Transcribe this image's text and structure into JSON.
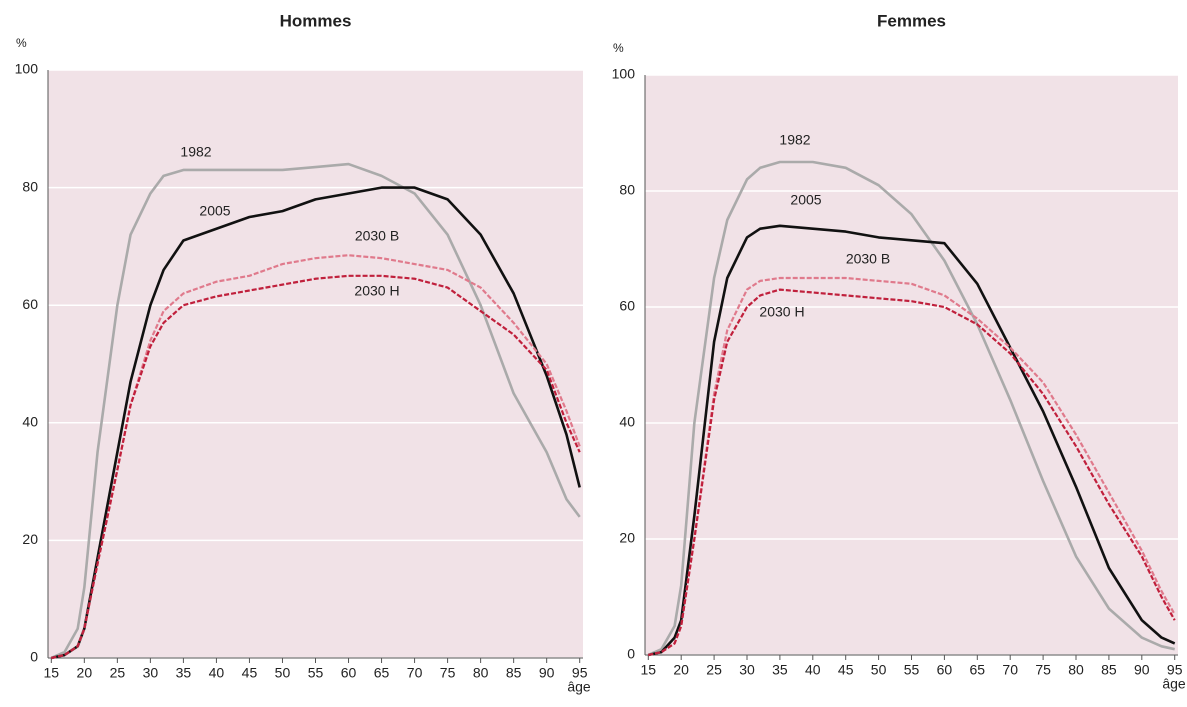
{
  "chart_data": [
    {
      "type": "line",
      "title": "Hommes",
      "y_label": "%",
      "x_label": "âge",
      "x": [
        15,
        17,
        19,
        20,
        22,
        25,
        27,
        30,
        32,
        35,
        40,
        45,
        50,
        55,
        60,
        65,
        70,
        75,
        80,
        85,
        90,
        93,
        95
      ],
      "series": [
        {
          "name": "1982",
          "color": "#aaaaaa",
          "dashed": false,
          "values": [
            0,
            1,
            5,
            12,
            35,
            60,
            72,
            79,
            82,
            83,
            83,
            83,
            83,
            83.5,
            84,
            82,
            79,
            72,
            60,
            45,
            35,
            27,
            24
          ]
        },
        {
          "name": "2005",
          "color": "#111111",
          "dashed": false,
          "values": [
            0,
            0.5,
            2,
            5,
            17,
            35,
            47,
            60,
            66,
            71,
            73,
            75,
            76,
            78,
            79,
            80,
            80,
            78,
            72,
            62,
            48,
            38,
            29
          ]
        },
        {
          "name": "2030 B",
          "color": "#e07a8c",
          "dashed": true,
          "values": [
            0,
            0.5,
            2,
            5,
            16,
            32,
            43,
            54,
            59,
            62,
            64,
            65,
            67,
            68,
            68.5,
            68,
            67,
            66,
            63,
            57,
            50,
            42,
            36
          ]
        },
        {
          "name": "2030 H",
          "color": "#c0203c",
          "dashed": true,
          "values": [
            0,
            0.5,
            2,
            5,
            16,
            32,
            43,
            53,
            57,
            60,
            61.5,
            62.5,
            63.5,
            64.5,
            65,
            65,
            64.5,
            63,
            59,
            55,
            49,
            40,
            35
          ]
        }
      ],
      "xlim": [
        14.5,
        95.5
      ],
      "ylim": [
        0,
        100
      ],
      "xticks": [
        15,
        20,
        25,
        30,
        35,
        40,
        45,
        50,
        55,
        60,
        65,
        70,
        75,
        80,
        85,
        90,
        95
      ],
      "yticks": [
        0,
        20,
        40,
        60,
        80,
        100
      ],
      "grid": true
    },
    {
      "type": "line",
      "title": "Femmes",
      "y_label": "%",
      "x_label": "âge",
      "x": [
        15,
        17,
        19,
        20,
        22,
        25,
        27,
        30,
        32,
        35,
        40,
        45,
        50,
        55,
        60,
        65,
        70,
        75,
        80,
        85,
        90,
        93,
        95
      ],
      "series": [
        {
          "name": "1982",
          "color": "#aaaaaa",
          "dashed": false,
          "values": [
            0,
            1,
            5,
            12,
            40,
            65,
            75,
            82,
            84,
            85,
            85,
            84,
            81,
            76,
            68,
            57,
            44,
            30,
            17,
            8,
            3,
            1.5,
            1
          ]
        },
        {
          "name": "2005",
          "color": "#111111",
          "dashed": false,
          "values": [
            0,
            0.5,
            3,
            6,
            24,
            54,
            65,
            72,
            73.5,
            74,
            73.5,
            73,
            72,
            71.5,
            71,
            64,
            53,
            42,
            29,
            15,
            6,
            3,
            2
          ]
        },
        {
          "name": "2030 B",
          "color": "#e07a8c",
          "dashed": true,
          "values": [
            0,
            0.5,
            2,
            5,
            20,
            45,
            56,
            63,
            64.5,
            65,
            65,
            65,
            64.5,
            64,
            62,
            58,
            53,
            47,
            38,
            28,
            18,
            11,
            7
          ]
        },
        {
          "name": "2030 H",
          "color": "#c0203c",
          "dashed": true,
          "values": [
            0,
            0.5,
            2,
            5,
            20,
            44,
            54,
            60,
            62,
            63,
            62.5,
            62,
            61.5,
            61,
            60,
            57,
            52,
            45,
            36,
            26,
            17,
            10,
            6
          ]
        }
      ],
      "xlim": [
        14.5,
        95.5
      ],
      "ylim": [
        0,
        100
      ],
      "xticks": [
        15,
        20,
        25,
        30,
        35,
        40,
        45,
        50,
        55,
        60,
        65,
        70,
        75,
        80,
        85,
        90,
        95
      ],
      "yticks": [
        0,
        20,
        40,
        60,
        80,
        100
      ],
      "grid": true
    }
  ]
}
